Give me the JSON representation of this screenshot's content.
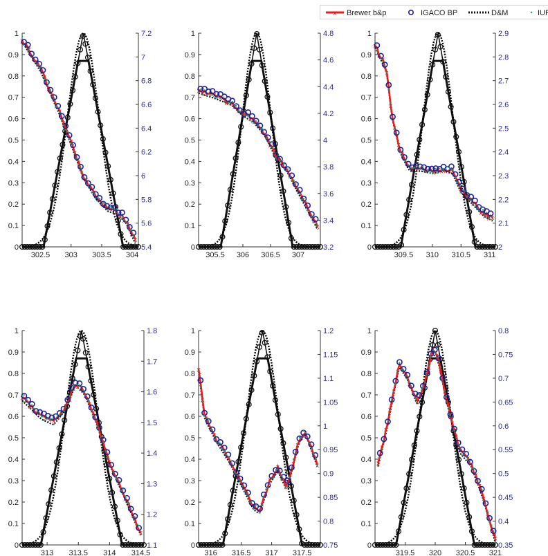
{
  "legend": {
    "entries": [
      {
        "label": "Brewer b&p",
        "color": "#ee1c1c",
        "style": "line-x"
      },
      {
        "label": "IGACO BP",
        "color": "#1f1f99",
        "style": "circle"
      },
      {
        "label": "D&M",
        "color": "#000000",
        "style": "dotted"
      },
      {
        "label": "IUP",
        "color": "#00a86b",
        "style": "dot"
      }
    ]
  },
  "chart_data": [
    {
      "type": "line",
      "left_axis": {
        "ylim": [
          0,
          1
        ],
        "ticks": [
          "0",
          "0.1",
          "0.2",
          "0.3",
          "0.4",
          "0.5",
          "0.6",
          "0.7",
          "0.8",
          "0.9",
          "1"
        ]
      },
      "right_axis": {
        "ylim": [
          5.4,
          7.2
        ],
        "ticks": [
          "5.4",
          "5.6",
          "5.8",
          "6",
          "6.2",
          "6.4",
          "6.6",
          "6.8",
          "7",
          "7.2"
        ]
      },
      "xlim": [
        302.2,
        304.1
      ],
      "x_ticks": [
        {
          "v": 302.5,
          "l": "302.5"
        },
        {
          "v": 303,
          "l": "303"
        },
        {
          "v": 303.5,
          "l": "303.5"
        },
        {
          "v": 304,
          "l": "304"
        }
      ],
      "slit": {
        "base_start": 302.55,
        "peak": 303.2,
        "base_end": 303.85,
        "trap_level": 0.87,
        "trap_half": 0.1
      },
      "series": {
        "x": [
          302.2,
          302.5,
          302.8,
          303.0,
          303.2,
          303.4,
          303.6,
          303.75,
          303.9,
          304.05
        ],
        "y": [
          7.15,
          6.9,
          6.55,
          6.28,
          6.0,
          5.83,
          5.72,
          5.7,
          5.62,
          5.45
        ]
      }
    },
    {
      "type": "line",
      "left_axis": {
        "ylim": [
          0,
          1
        ],
        "ticks": [
          "0",
          "0.1",
          "0.2",
          "0.3",
          "0.4",
          "0.5",
          "0.6",
          "0.7",
          "0.8",
          "0.9",
          "1"
        ]
      },
      "right_axis": {
        "ylim": [
          3.2,
          4.8
        ],
        "ticks": [
          "3.2",
          "3.4",
          "3.6",
          "3.8",
          "4",
          "4.2",
          "4.4",
          "4.6",
          "4.8"
        ]
      },
      "xlim": [
        305.2,
        307.4
      ],
      "x_ticks": [
        {
          "v": 305.5,
          "l": "305.5"
        },
        {
          "v": 306,
          "l": "306"
        },
        {
          "v": 306.5,
          "l": "306.5"
        },
        {
          "v": 307,
          "l": "307"
        }
      ],
      "slit": {
        "base_start": 305.6,
        "peak": 306.25,
        "base_end": 306.9,
        "trap_level": 0.87,
        "trap_half": 0.1
      },
      "series": {
        "x": [
          305.2,
          305.5,
          305.8,
          306.0,
          306.2,
          306.4,
          306.6,
          306.8,
          307.0,
          307.35
        ],
        "y": [
          4.37,
          4.33,
          4.28,
          4.2,
          4.15,
          4.05,
          3.88,
          3.78,
          3.62,
          3.35
        ]
      }
    },
    {
      "type": "line",
      "left_axis": {
        "ylim": [
          0,
          1
        ],
        "ticks": [
          "0",
          "0.1",
          "0.2",
          "0.3",
          "0.4",
          "0.5",
          "0.6",
          "0.7",
          "0.8",
          "0.9",
          "1"
        ]
      },
      "right_axis": {
        "ylim": [
          2.0,
          2.9
        ],
        "ticks": [
          "2",
          "2.1",
          "2.2",
          "2.3",
          "2.4",
          "2.5",
          "2.6",
          "2.7",
          "2.8",
          "2.9"
        ]
      },
      "xlim": [
        309.0,
        311.1
      ],
      "x_ticks": [
        {
          "v": 309.5,
          "l": "309.5"
        },
        {
          "v": 310,
          "l": "310"
        },
        {
          "v": 310.5,
          "l": "310.5"
        },
        {
          "v": 311,
          "l": "311"
        }
      ],
      "slit": {
        "base_start": 309.45,
        "peak": 310.1,
        "base_end": 310.75,
        "trap_level": 0.87,
        "trap_half": 0.1
      },
      "series": {
        "x": [
          309.0,
          309.2,
          309.3,
          309.45,
          309.6,
          309.8,
          310.0,
          310.2,
          310.35,
          310.5,
          310.7,
          310.9,
          311.05
        ],
        "y": [
          2.85,
          2.75,
          2.55,
          2.4,
          2.33,
          2.33,
          2.32,
          2.33,
          2.32,
          2.24,
          2.19,
          2.14,
          2.12
        ]
      }
    },
    {
      "type": "line",
      "left_axis": {
        "ylim": [
          0,
          1
        ],
        "ticks": [
          "0",
          "0.1",
          "0.2",
          "0.3",
          "0.4",
          "0.5",
          "0.6",
          "0.7",
          "0.8",
          "0.9",
          "1"
        ]
      },
      "right_axis": {
        "ylim": [
          1.1,
          1.8
        ],
        "ticks": [
          "1.1",
          "1.2",
          "1.3",
          "1.4",
          "1.5",
          "1.6",
          "1.7",
          "1.8"
        ]
      },
      "xlim": [
        312.6,
        314.55
      ],
      "x_ticks": [
        {
          "v": 313,
          "l": "313"
        },
        {
          "v": 313.5,
          "l": "313.5"
        },
        {
          "v": 314,
          "l": "314"
        },
        {
          "v": 314.5,
          "l": "314.5"
        }
      ],
      "slit": {
        "base_start": 312.9,
        "peak": 313.55,
        "base_end": 314.2,
        "trap_level": 0.87,
        "trap_half": 0.1
      },
      "series": {
        "x": [
          312.6,
          312.9,
          313.1,
          313.3,
          313.45,
          313.6,
          313.8,
          314.0,
          314.2,
          314.5
        ],
        "y": [
          1.58,
          1.52,
          1.5,
          1.55,
          1.63,
          1.6,
          1.5,
          1.37,
          1.28,
          1.14
        ]
      }
    },
    {
      "type": "line",
      "left_axis": {
        "ylim": [
          0,
          1
        ],
        "ticks": [
          "0",
          "0.1",
          "0.2",
          "0.3",
          "0.4",
          "0.5",
          "0.6",
          "0.7",
          "0.8",
          "0.9",
          "1"
        ]
      },
      "right_axis": {
        "ylim": [
          0.75,
          1.2
        ],
        "ticks": [
          "0.75",
          "0.8",
          "0.85",
          "0.9",
          "0.95",
          "1",
          "1.05",
          "1.1",
          "1.15",
          "1.2"
        ]
      },
      "xlim": [
        315.8,
        317.8
      ],
      "x_ticks": [
        {
          "v": 316,
          "l": "316"
        },
        {
          "v": 316.5,
          "l": "316.5"
        },
        {
          "v": 317,
          "l": "317"
        },
        {
          "v": 317.5,
          "l": "317.5"
        }
      ],
      "slit": {
        "base_start": 316.2,
        "peak": 316.85,
        "base_end": 317.5,
        "trap_level": 0.87,
        "trap_half": 0.1
      },
      "series": {
        "x": [
          315.8,
          315.9,
          316.1,
          316.3,
          316.5,
          316.7,
          316.8,
          316.95,
          317.1,
          317.25,
          317.45,
          317.55,
          317.75
        ],
        "y": [
          1.12,
          1.02,
          0.97,
          0.93,
          0.88,
          0.83,
          0.82,
          0.88,
          0.91,
          0.87,
          0.97,
          0.99,
          0.92
        ]
      }
    },
    {
      "type": "line",
      "left_axis": {
        "ylim": [
          0,
          1
        ],
        "ticks": [
          "0",
          "0.1",
          "0.2",
          "0.3",
          "0.4",
          "0.5",
          "0.6",
          "0.7",
          "0.8",
          "0.9",
          "1"
        ]
      },
      "right_axis": {
        "ylim": [
          0.35,
          0.8
        ],
        "ticks": [
          "0.35",
          "0.4",
          "0.45",
          "0.5",
          "0.55",
          "0.6",
          "0.65",
          "0.7",
          "0.75",
          "0.8"
        ]
      },
      "xlim": [
        319.0,
        321.0
      ],
      "x_ticks": [
        {
          "v": 319.5,
          "l": "319.5"
        },
        {
          "v": 320,
          "l": "320"
        },
        {
          "v": 320.5,
          "l": "320.5"
        },
        {
          "v": 321,
          "l": "321"
        }
      ],
      "slit": {
        "base_start": 319.35,
        "peak": 320.0,
        "base_end": 320.65,
        "trap_level": 0.87,
        "trap_half": 0.1
      },
      "series": {
        "x": [
          319.05,
          319.2,
          319.4,
          319.55,
          319.7,
          319.85,
          319.95,
          320.05,
          320.2,
          320.4,
          320.6,
          320.8,
          321.0
        ],
        "y": [
          0.52,
          0.6,
          0.73,
          0.7,
          0.65,
          0.7,
          0.76,
          0.74,
          0.65,
          0.55,
          0.52,
          0.45,
          0.36
        ]
      }
    }
  ]
}
